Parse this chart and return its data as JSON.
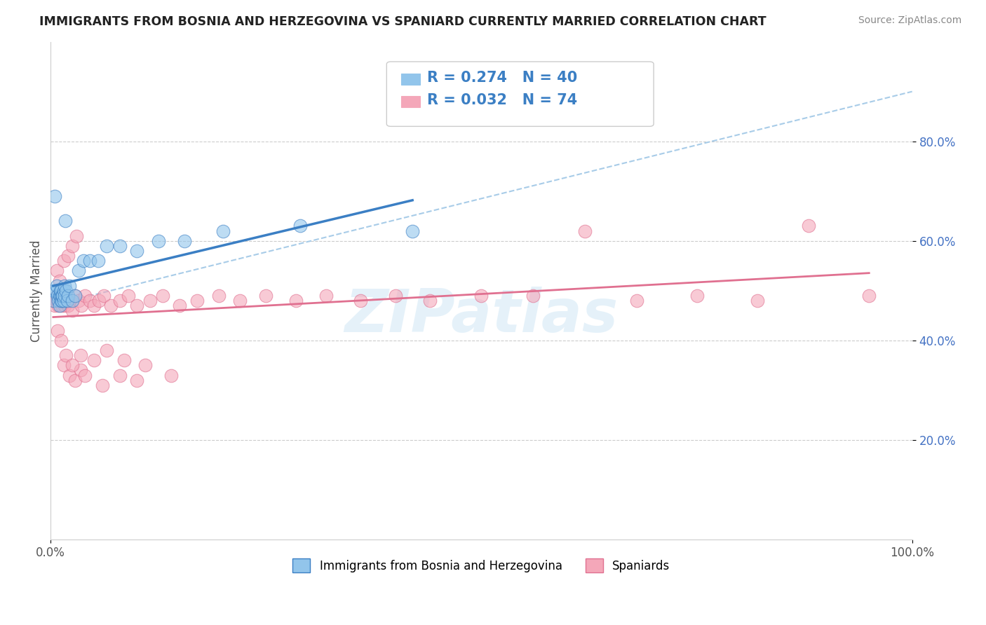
{
  "title": "IMMIGRANTS FROM BOSNIA AND HERZEGOVINA VS SPANIARD CURRENTLY MARRIED CORRELATION CHART",
  "source": "Source: ZipAtlas.com",
  "ylabel": "Currently Married",
  "legend_label1": "Immigrants from Bosnia and Herzegovina",
  "legend_label2": "Spaniards",
  "R1": 0.274,
  "N1": 40,
  "R2": 0.032,
  "N2": 74,
  "color1": "#92C5EB",
  "color2": "#F4A7B9",
  "trendline1_color": "#3B7FC4",
  "trendline2_color": "#E07090",
  "trendline_dash_color": "#A8CCE8",
  "watermark": "ZIPatlas",
  "xlim": [
    0.0,
    1.0
  ],
  "ylim": [
    0.0,
    1.0
  ],
  "bosnia_x": [
    0.003,
    0.004,
    0.005,
    0.006,
    0.007,
    0.008,
    0.009,
    0.01,
    0.01,
    0.011,
    0.011,
    0.012,
    0.012,
    0.013,
    0.013,
    0.014,
    0.014,
    0.015,
    0.015,
    0.016,
    0.016,
    0.017,
    0.018,
    0.019,
    0.02,
    0.022,
    0.025,
    0.028,
    0.032,
    0.038,
    0.045,
    0.055,
    0.065,
    0.08,
    0.1,
    0.125,
    0.155,
    0.2,
    0.29,
    0.42
  ],
  "bosnia_y": [
    0.48,
    0.5,
    0.69,
    0.5,
    0.51,
    0.49,
    0.48,
    0.47,
    0.49,
    0.49,
    0.5,
    0.48,
    0.5,
    0.48,
    0.49,
    0.49,
    0.49,
    0.48,
    0.5,
    0.49,
    0.51,
    0.64,
    0.5,
    0.48,
    0.49,
    0.51,
    0.48,
    0.49,
    0.54,
    0.56,
    0.56,
    0.56,
    0.59,
    0.59,
    0.58,
    0.6,
    0.6,
    0.62,
    0.63,
    0.62
  ],
  "spaniard_x": [
    0.003,
    0.005,
    0.006,
    0.007,
    0.008,
    0.009,
    0.01,
    0.011,
    0.012,
    0.013,
    0.014,
    0.015,
    0.016,
    0.017,
    0.018,
    0.02,
    0.022,
    0.025,
    0.028,
    0.032,
    0.036,
    0.04,
    0.045,
    0.05,
    0.056,
    0.062,
    0.07,
    0.08,
    0.09,
    0.1,
    0.115,
    0.13,
    0.15,
    0.17,
    0.195,
    0.22,
    0.25,
    0.285,
    0.32,
    0.36,
    0.4,
    0.44,
    0.5,
    0.56,
    0.62,
    0.68,
    0.75,
    0.82,
    0.88,
    0.95,
    0.007,
    0.01,
    0.015,
    0.02,
    0.025,
    0.03,
    0.015,
    0.022,
    0.028,
    0.035,
    0.04,
    0.06,
    0.08,
    0.1,
    0.008,
    0.012,
    0.018,
    0.025,
    0.035,
    0.05,
    0.065,
    0.085,
    0.11,
    0.14
  ],
  "spaniard_y": [
    0.48,
    0.47,
    0.48,
    0.49,
    0.48,
    0.47,
    0.48,
    0.49,
    0.48,
    0.47,
    0.48,
    0.49,
    0.47,
    0.48,
    0.49,
    0.47,
    0.48,
    0.46,
    0.49,
    0.48,
    0.47,
    0.49,
    0.48,
    0.47,
    0.48,
    0.49,
    0.47,
    0.48,
    0.49,
    0.47,
    0.48,
    0.49,
    0.47,
    0.48,
    0.49,
    0.48,
    0.49,
    0.48,
    0.49,
    0.48,
    0.49,
    0.48,
    0.49,
    0.49,
    0.62,
    0.48,
    0.49,
    0.48,
    0.63,
    0.49,
    0.54,
    0.52,
    0.56,
    0.57,
    0.59,
    0.61,
    0.35,
    0.33,
    0.32,
    0.34,
    0.33,
    0.31,
    0.33,
    0.32,
    0.42,
    0.4,
    0.37,
    0.35,
    0.37,
    0.36,
    0.38,
    0.36,
    0.35,
    0.33
  ]
}
